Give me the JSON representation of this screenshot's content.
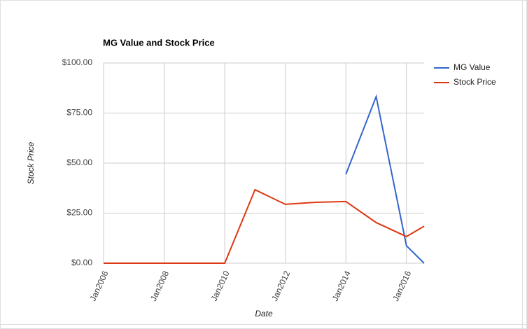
{
  "chart_data": {
    "type": "line",
    "title": "MG Value and Stock Price",
    "x_label": "Date",
    "y_label": "Stock Price",
    "x": [
      "2006-01",
      "2007-01",
      "2008-01",
      "2009-01",
      "2010-01",
      "2011-01",
      "2012-01",
      "2013-01",
      "2014-01",
      "2015-01",
      "2016-01",
      "2016-08"
    ],
    "series": [
      {
        "name": "MG Value",
        "color": "#3366cc",
        "values": [
          null,
          null,
          null,
          null,
          null,
          null,
          null,
          null,
          44.4,
          83.2,
          8.7,
          0
        ]
      },
      {
        "name": "Stock Price",
        "color": "#dc3912",
        "values": [
          0,
          0,
          0,
          0,
          0,
          36.7,
          29.4,
          30.4,
          30.8,
          20.3,
          13.3,
          18.5
        ]
      }
    ],
    "xlim": [
      "2006-01",
      "2016-08"
    ],
    "xticks": [
      {
        "value": "2006-01",
        "label": "Jan2006"
      },
      {
        "value": "2008-01",
        "label": "Jan2008"
      },
      {
        "value": "2010-01",
        "label": "Jan2010"
      },
      {
        "value": "2012-01",
        "label": "Jan2012"
      },
      {
        "value": "2014-01",
        "label": "Jan2014"
      },
      {
        "value": "2016-01",
        "label": "Jan2016"
      }
    ],
    "ylim": [
      0,
      100
    ],
    "yticks": [
      {
        "value": 0,
        "label": "$0.00"
      },
      {
        "value": 25,
        "label": "$25.00"
      },
      {
        "value": 50,
        "label": "$50.00"
      },
      {
        "value": 75,
        "label": "$75.00"
      },
      {
        "value": 100,
        "label": "$100.00"
      }
    ],
    "grid": true,
    "legend": "right"
  }
}
